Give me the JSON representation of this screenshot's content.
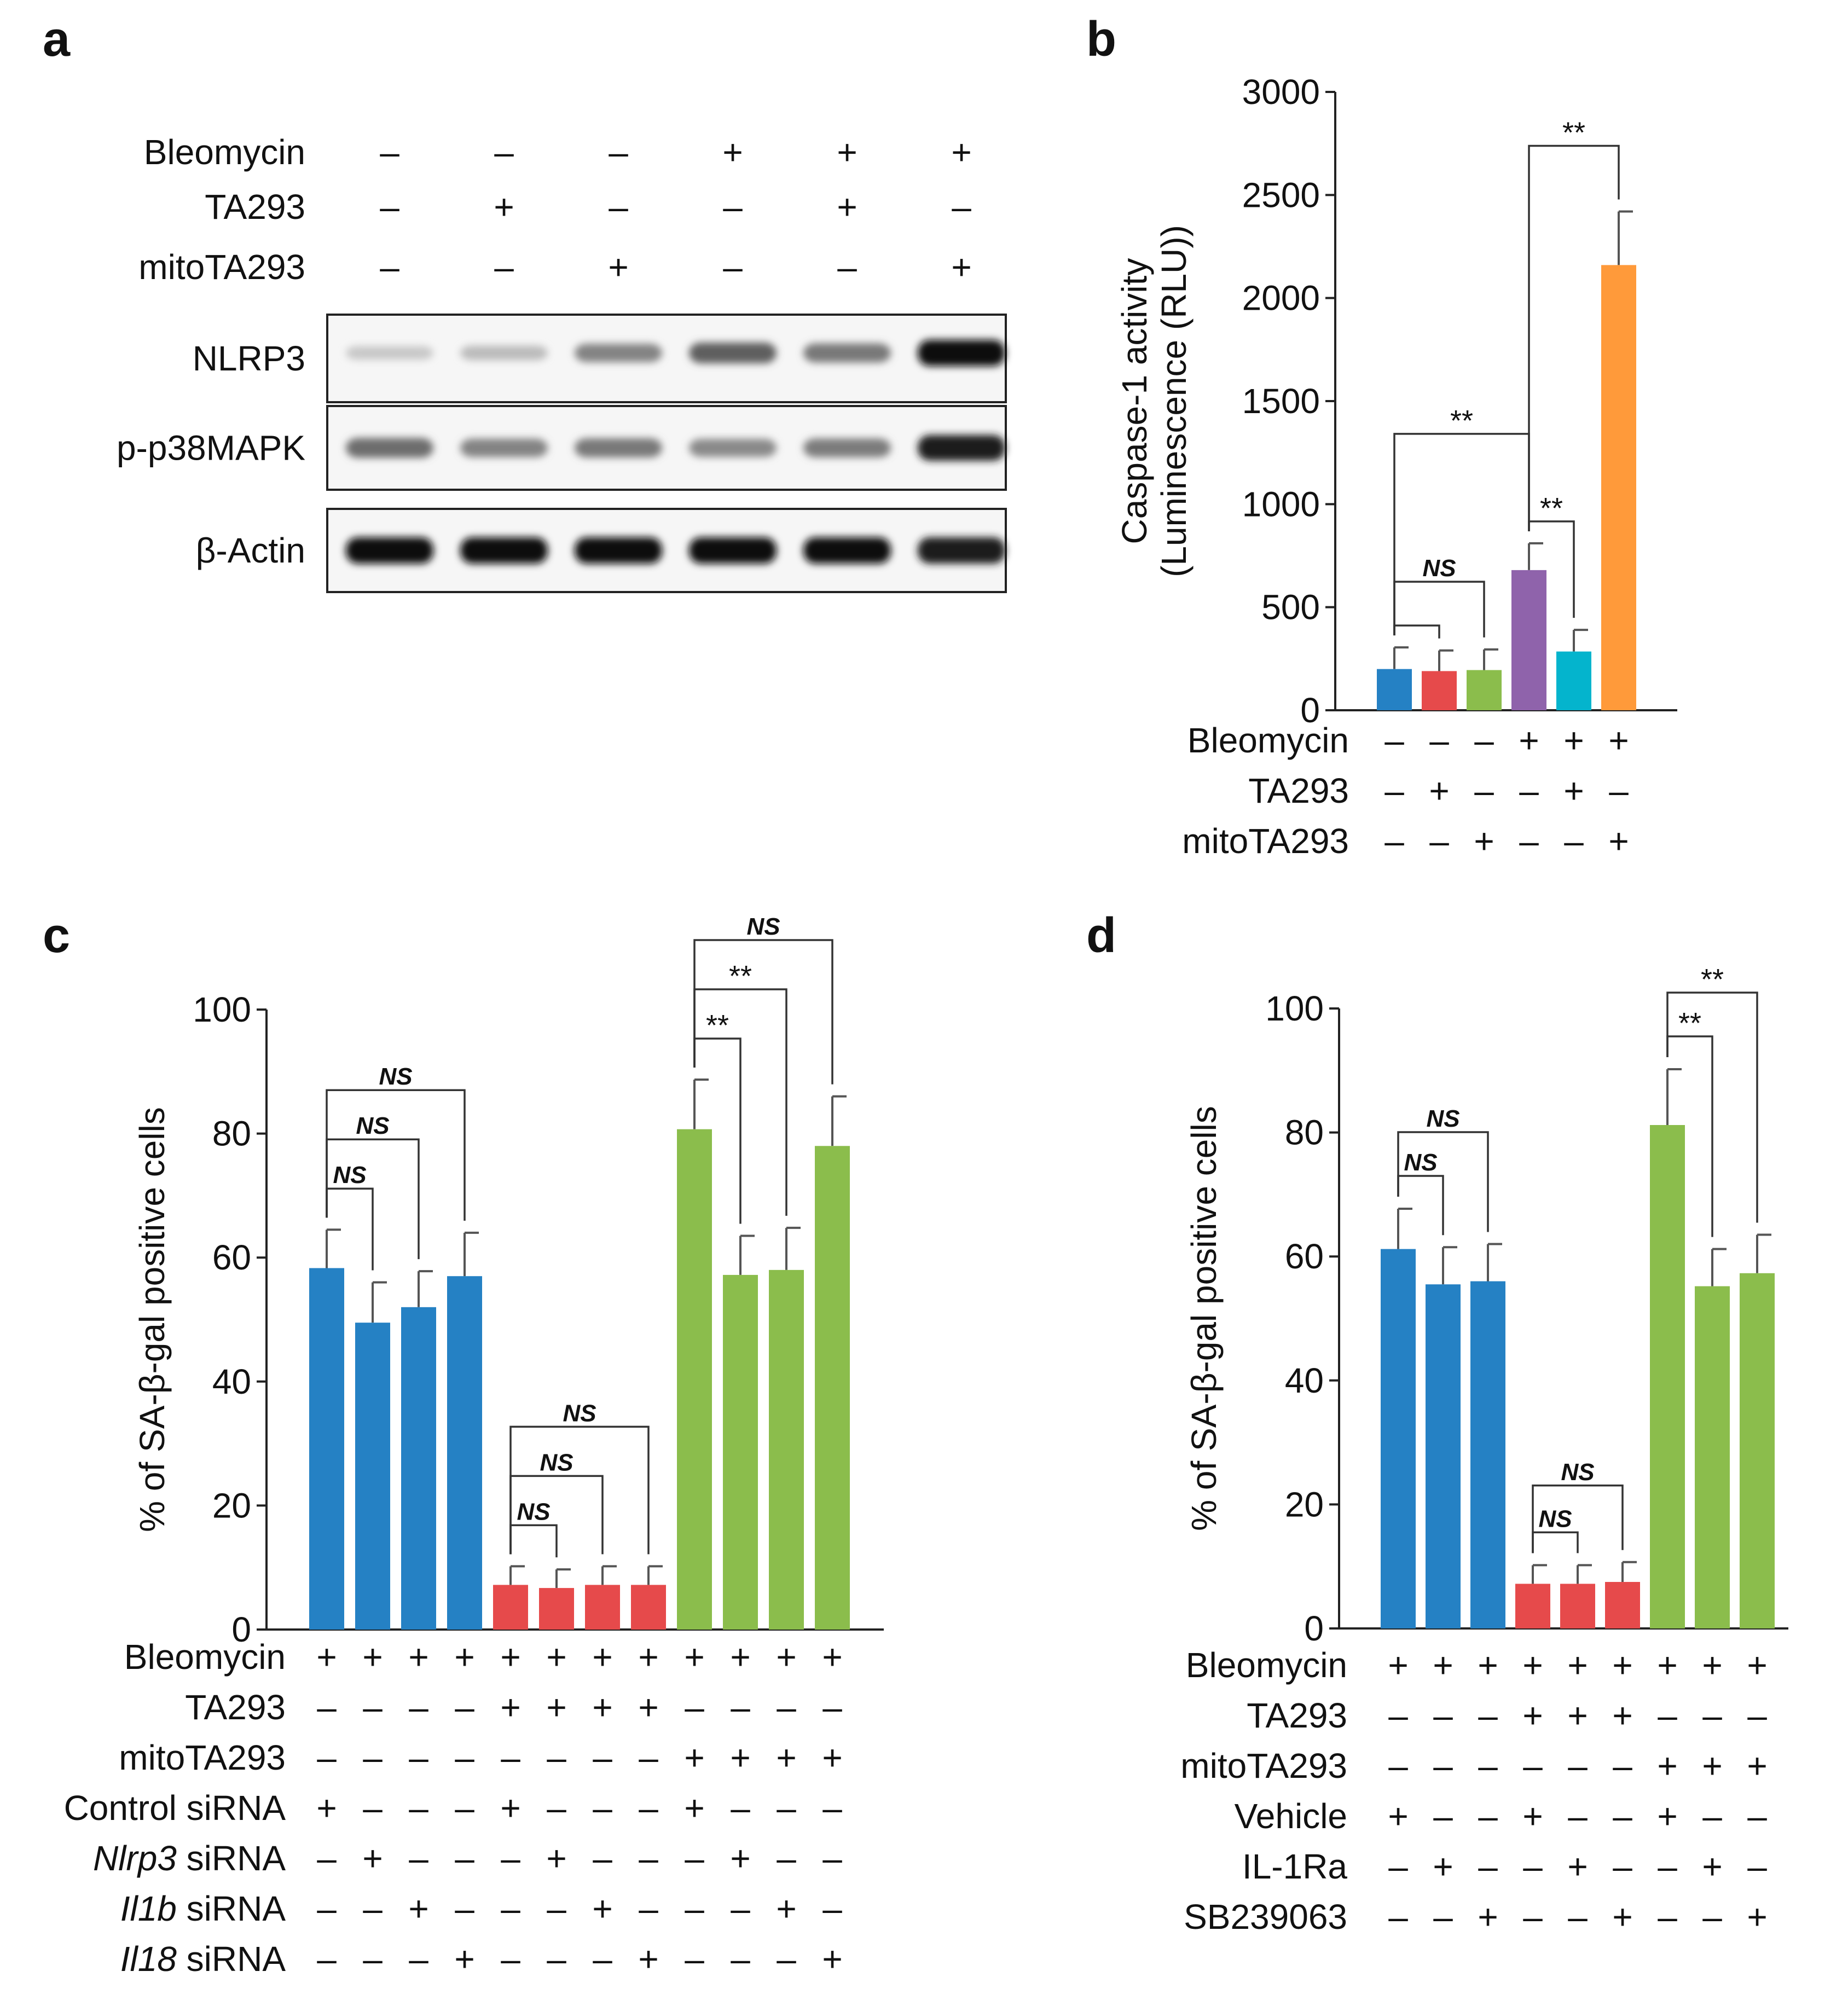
{
  "colors": {
    "blue": "#2581c4",
    "red": "#e64a4b",
    "green": "#8bbd4c",
    "purple": "#8f63ab",
    "cyan": "#04b4cd",
    "orange": "#ff9a3a"
  },
  "panel_a": {
    "letter": "a",
    "rows": [
      {
        "label": "Bleomycin",
        "signs": [
          "–",
          "–",
          "–",
          "+",
          "+",
          "+"
        ]
      },
      {
        "label": "TA293",
        "signs": [
          "–",
          "+",
          "–",
          "–",
          "+",
          "–"
        ]
      },
      {
        "label": "mitoTA293",
        "signs": [
          "–",
          "–",
          "+",
          "–",
          "–",
          "+"
        ]
      }
    ],
    "blots": [
      {
        "label": "NLRP3",
        "intensity": [
          0.12,
          0.18,
          0.45,
          0.62,
          0.5,
          1.0
        ]
      },
      {
        "label": "p-p38MAPK",
        "intensity": [
          0.55,
          0.45,
          0.5,
          0.42,
          0.48,
          0.95
        ]
      },
      {
        "label": "β-Actin",
        "intensity": [
          1.0,
          1.0,
          1.0,
          1.0,
          1.0,
          0.95
        ]
      }
    ]
  },
  "chart_data": [
    {
      "panel": "b",
      "type": "bar",
      "ylabel_line1": "Caspase-1 activity",
      "ylabel_line2": "(Luminescence (RLU))",
      "ylim": [
        0,
        3000
      ],
      "yticks": [
        "0",
        "500",
        "1000",
        "1500",
        "2000",
        "2500",
        "3000"
      ],
      "values": [
        200,
        190,
        195,
        680,
        285,
        2160
      ],
      "errors": [
        105,
        100,
        100,
        130,
        105,
        260
      ],
      "colors": [
        "blue",
        "red",
        "green",
        "purple",
        "cyan",
        "orange"
      ],
      "rows": [
        {
          "label": "Bleomycin",
          "signs": [
            "–",
            "–",
            "–",
            "+",
            "+",
            "+"
          ]
        },
        {
          "label": "TA293",
          "signs": [
            "–",
            "+",
            "–",
            "–",
            "+",
            "–"
          ]
        },
        {
          "label": "mitoTA293",
          "signs": [
            "–",
            "–",
            "+",
            "–",
            "–",
            "+"
          ]
        }
      ],
      "annotations": [
        {
          "a": 0,
          "b": 1,
          "text": ""
        },
        {
          "a": 0,
          "b": 2,
          "text": "NS"
        },
        {
          "a": 0,
          "b": 3,
          "text": "**"
        },
        {
          "a": 3,
          "b": 4,
          "text": "**"
        },
        {
          "a": 3,
          "b": 5,
          "text": "**"
        }
      ]
    },
    {
      "panel": "c",
      "type": "bar",
      "ylabel": "% of SA-β-gal positive cells",
      "ylim": [
        0,
        100
      ],
      "yticks": [
        "0",
        "20",
        "40",
        "60",
        "80",
        "100"
      ],
      "values": [
        58.3,
        49.5,
        52.0,
        57.0,
        7.2,
        6.7,
        7.2,
        7.2,
        80.7,
        57.2,
        58.0,
        78.0
      ],
      "errors": [
        6.2,
        6.5,
        5.8,
        7.0,
        3.0,
        3.0,
        3.0,
        3.0,
        8.0,
        6.3,
        6.8,
        8.0
      ],
      "colors": [
        "blue",
        "blue",
        "blue",
        "blue",
        "red",
        "red",
        "red",
        "red",
        "green",
        "green",
        "green",
        "green"
      ],
      "rows": [
        {
          "label": "Bleomycin",
          "italic": "",
          "signs": [
            "+",
            "+",
            "+",
            "+",
            "+",
            "+",
            "+",
            "+",
            "+",
            "+",
            "+",
            "+"
          ]
        },
        {
          "label": "TA293",
          "italic": "",
          "signs": [
            "–",
            "–",
            "–",
            "–",
            "+",
            "+",
            "+",
            "+",
            "–",
            "–",
            "–",
            "–"
          ]
        },
        {
          "label": "mitoTA293",
          "italic": "",
          "signs": [
            "–",
            "–",
            "–",
            "–",
            "–",
            "–",
            "–",
            "–",
            "+",
            "+",
            "+",
            "+"
          ]
        },
        {
          "label": "Control siRNA",
          "italic": "",
          "signs": [
            "+",
            "–",
            "–",
            "–",
            "+",
            "–",
            "–",
            "–",
            "+",
            "–",
            "–",
            "–"
          ]
        },
        {
          "label": " siRNA",
          "italic": "Nlrp3",
          "signs": [
            "–",
            "+",
            "–",
            "–",
            "–",
            "+",
            "–",
            "–",
            "–",
            "+",
            "–",
            "–"
          ]
        },
        {
          "label": " siRNA",
          "italic": "Il1b",
          "signs": [
            "–",
            "–",
            "+",
            "–",
            "–",
            "–",
            "+",
            "–",
            "–",
            "–",
            "+",
            "–"
          ]
        },
        {
          "label": " siRNA",
          "italic": "Il18",
          "signs": [
            "–",
            "–",
            "–",
            "+",
            "–",
            "–",
            "–",
            "+",
            "–",
            "–",
            "–",
            "+"
          ]
        }
      ],
      "annotations": [
        {
          "a": 0,
          "b": 1,
          "text": "NS"
        },
        {
          "a": 0,
          "b": 2,
          "text": "NS"
        },
        {
          "a": 0,
          "b": 3,
          "text": "NS"
        },
        {
          "a": 4,
          "b": 5,
          "text": "NS"
        },
        {
          "a": 4,
          "b": 6,
          "text": "NS"
        },
        {
          "a": 4,
          "b": 7,
          "text": "NS"
        },
        {
          "a": 8,
          "b": 9,
          "text": "**"
        },
        {
          "a": 8,
          "b": 10,
          "text": "**"
        },
        {
          "a": 8,
          "b": 11,
          "text": "NS"
        }
      ]
    },
    {
      "panel": "d",
      "type": "bar",
      "ylabel": "% of SA-β-gal positive cells",
      "ylim": [
        0,
        100
      ],
      "yticks": [
        "0",
        "20",
        "40",
        "60",
        "80",
        "100"
      ],
      "values": [
        61.2,
        55.5,
        56.0,
        7.2,
        7.2,
        7.5,
        81.2,
        55.2,
        57.3
      ],
      "errors": [
        6.5,
        6.0,
        6.0,
        3.0,
        3.0,
        3.2,
        9.0,
        6.0,
        6.2
      ],
      "colors": [
        "blue",
        "blue",
        "blue",
        "red",
        "red",
        "red",
        "green",
        "green",
        "green"
      ],
      "rows": [
        {
          "label": "Bleomycin",
          "signs": [
            "+",
            "+",
            "+",
            "+",
            "+",
            "+",
            "+",
            "+",
            "+"
          ]
        },
        {
          "label": "TA293",
          "signs": [
            "–",
            "–",
            "–",
            "+",
            "+",
            "+",
            "–",
            "–",
            "–"
          ]
        },
        {
          "label": "mitoTA293",
          "signs": [
            "–",
            "–",
            "–",
            "–",
            "–",
            "–",
            "+",
            "+",
            "+"
          ]
        },
        {
          "label": "Vehicle",
          "signs": [
            "+",
            "–",
            "–",
            "+",
            "–",
            "–",
            "+",
            "–",
            "–"
          ]
        },
        {
          "label": "IL-1Ra",
          "signs": [
            "–",
            "+",
            "–",
            "–",
            "+",
            "–",
            "–",
            "+",
            "–"
          ]
        },
        {
          "label": "SB239063",
          "signs": [
            "–",
            "–",
            "+",
            "–",
            "–",
            "+",
            "–",
            "–",
            "+"
          ]
        }
      ],
      "annotations": [
        {
          "a": 0,
          "b": 1,
          "text": "NS"
        },
        {
          "a": 0,
          "b": 2,
          "text": "NS"
        },
        {
          "a": 3,
          "b": 4,
          "text": "NS"
        },
        {
          "a": 3,
          "b": 5,
          "text": "NS"
        },
        {
          "a": 6,
          "b": 7,
          "text": "**"
        },
        {
          "a": 6,
          "b": 8,
          "text": "**"
        }
      ]
    }
  ]
}
